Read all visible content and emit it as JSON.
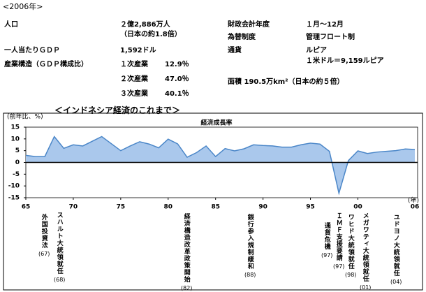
{
  "header": "<2006年>",
  "stats": {
    "population": {
      "label": "人口",
      "value": "２億2,886万人",
      "note": "（日本の約1.8倍）"
    },
    "gdp_per_capita": {
      "label": "一人当たりＧＤＰ",
      "value": "1,592ドル"
    },
    "industry": {
      "label": "産業構造（ＧＤＰ構成比）",
      "rows": [
        [
          "１次産業",
          "12.9％"
        ],
        [
          "２次産業",
          "47.0％"
        ],
        [
          "３次産業",
          "40.1％"
        ]
      ]
    },
    "fiscal_year": {
      "label": "財政会計年度",
      "value": "１月～12月"
    },
    "exchange_system": {
      "label": "為替制度",
      "value": "管理フロート制"
    },
    "currency": {
      "label": "通貨",
      "value": "ルピア",
      "note": "１米ドル＝9,159ルピア"
    },
    "area": "面積 190.5万km²（日本の約５倍）"
  },
  "section_title": "＜インドネシア経済のこれまで＞",
  "chart_data": {
    "type": "area",
    "title": "経済成長率",
    "y_label": "(前年比、%)",
    "x_label": "(年)",
    "x": [
      1965,
      1966,
      1967,
      1968,
      1969,
      1970,
      1971,
      1972,
      1973,
      1974,
      1975,
      1976,
      1977,
      1978,
      1979,
      1980,
      1981,
      1982,
      1983,
      1984,
      1985,
      1986,
      1987,
      1988,
      1989,
      1990,
      1991,
      1992,
      1993,
      1994,
      1995,
      1996,
      1997,
      1998,
      1999,
      2000,
      2001,
      2002,
      2003,
      2004,
      2005,
      2006
    ],
    "values": [
      3.0,
      2.5,
      2.5,
      11.0,
      6.0,
      7.5,
      7.0,
      9.0,
      11.0,
      8.0,
      5.0,
      7.0,
      8.8,
      7.8,
      6.2,
      9.9,
      7.9,
      2.2,
      4.2,
      7.0,
      2.5,
      5.9,
      4.9,
      5.8,
      7.5,
      7.2,
      7.0,
      6.5,
      6.5,
      7.5,
      8.2,
      7.8,
      4.7,
      -13.1,
      0.8,
      4.9,
      3.8,
      4.4,
      4.7,
      5.0,
      5.7,
      5.5
    ],
    "color": "#4a86c8",
    "fill": "#aac8ec",
    "xlim": [
      1965,
      2006
    ],
    "xticks": [
      {
        "value": 1965,
        "label": "65"
      },
      {
        "value": 1970,
        "label": "70"
      },
      {
        "value": 1975,
        "label": "75"
      },
      {
        "value": 1980,
        "label": "80"
      },
      {
        "value": 1985,
        "label": "85"
      },
      {
        "value": 1990,
        "label": "90"
      },
      {
        "value": 1995,
        "label": "95"
      },
      {
        "value": 2000,
        "label": "00"
      },
      {
        "value": 2006,
        "label": "06"
      }
    ],
    "ylim": [
      -15,
      15
    ],
    "yticks": [
      -15,
      -10,
      -5,
      0,
      5,
      10,
      15
    ]
  },
  "events": [
    {
      "text": "外国投資法",
      "year": "(67)"
    },
    {
      "text": "スハルト大統領就任",
      "year": "(68)"
    },
    {
      "text": "経済構造改革政策開始",
      "year": "(82)"
    },
    {
      "text": "銀行参入規制緩和",
      "year": "(88)"
    },
    {
      "text": "通貨危機",
      "year": "(97)"
    },
    {
      "text": "ＩＭＦ支援要請",
      "year": "(97)"
    },
    {
      "text": "ワヒド大統領就任",
      "year": "(98)"
    },
    {
      "text": "メガワティ大統領就任",
      "year": "(01)"
    },
    {
      "text": "ユドヨノ大統領就任",
      "year": "(04)"
    }
  ]
}
